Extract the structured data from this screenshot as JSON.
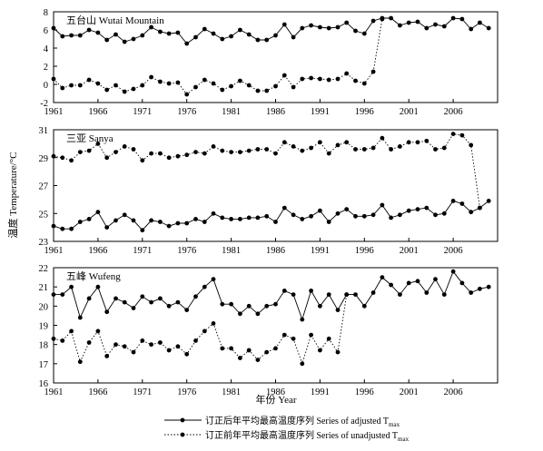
{
  "figure": {
    "ylabel": "温度 Temperature/°C",
    "xlabel": "年份 Year",
    "legend": [
      {
        "label_main": "订正后年平均最高温度序列 Series of adjusted T",
        "label_sub": "max",
        "style": "solid"
      },
      {
        "label_main": "订正前年平均最高温度序列 Series of unadjusted T",
        "label_sub": "max",
        "style": "dotted"
      }
    ]
  },
  "chart_data": [
    {
      "type": "line",
      "title": "五台山 Wutai Mountain",
      "xlim": [
        1961,
        2011
      ],
      "ylim": [
        -2,
        8
      ],
      "yticks": [
        -2,
        0,
        2,
        4,
        6,
        8
      ],
      "xticks": [
        1961,
        1966,
        1971,
        1976,
        1981,
        1986,
        1991,
        1996,
        2001,
        2006
      ],
      "x": [
        1961,
        1962,
        1963,
        1964,
        1965,
        1966,
        1967,
        1968,
        1969,
        1970,
        1971,
        1972,
        1973,
        1974,
        1975,
        1976,
        1977,
        1978,
        1979,
        1980,
        1981,
        1982,
        1983,
        1984,
        1985,
        1986,
        1987,
        1988,
        1989,
        1990,
        1991,
        1992,
        1993,
        1994,
        1995,
        1996,
        1997,
        1998,
        1999,
        2000,
        2001,
        2002,
        2003,
        2004,
        2005,
        2006,
        2007,
        2008,
        2009,
        2010,
        2011
      ],
      "series": [
        {
          "name": "订正后年平均最高温度序列 Series of adjusted Tmax",
          "style": "solid",
          "values": [
            6.2,
            5.3,
            5.4,
            5.4,
            6.0,
            5.7,
            4.9,
            5.5,
            4.7,
            5.0,
            5.4,
            6.3,
            5.8,
            5.6,
            5.7,
            4.5,
            5.2,
            6.1,
            5.6,
            5.0,
            5.3,
            6.0,
            5.5,
            4.9,
            4.9,
            5.4,
            6.6,
            5.2,
            6.2,
            6.5,
            6.3,
            6.2,
            6.3,
            6.8,
            5.9,
            5.6,
            7.0,
            7.3,
            7.3,
            6.5,
            6.8,
            6.9,
            6.2,
            6.6,
            6.4,
            7.3,
            7.2,
            6.1,
            6.8,
            6.2,
            null
          ]
        },
        {
          "name": "订正前年平均最高温度序列 Series of unadjusted Tmax",
          "style": "dotted",
          "values": [
            0.6,
            -0.4,
            -0.1,
            -0.1,
            0.5,
            0.1,
            -0.6,
            -0.1,
            -0.8,
            -0.5,
            -0.1,
            0.8,
            0.3,
            0.1,
            0.2,
            -1.1,
            -0.3,
            0.5,
            0.1,
            -0.6,
            -0.2,
            0.4,
            -0.1,
            -0.7,
            -0.7,
            -0.2,
            1.0,
            -0.3,
            0.6,
            0.7,
            0.6,
            0.5,
            0.6,
            1.2,
            0.4,
            0.1,
            1.4,
            7.2,
            null,
            null,
            null,
            null,
            null,
            null,
            null,
            null,
            null,
            null,
            null,
            null,
            null
          ]
        }
      ]
    },
    {
      "type": "line",
      "title": "三亚 Sanya",
      "xlim": [
        1961,
        2011
      ],
      "ylim": [
        23,
        31
      ],
      "yticks": [
        23,
        25,
        27,
        29,
        31
      ],
      "xticks": [
        1961,
        1966,
        1971,
        1976,
        1981,
        1986,
        1991,
        1996,
        2001,
        2006
      ],
      "x": [
        1961,
        1962,
        1963,
        1964,
        1965,
        1966,
        1967,
        1968,
        1969,
        1970,
        1971,
        1972,
        1973,
        1974,
        1975,
        1976,
        1977,
        1978,
        1979,
        1980,
        1981,
        1982,
        1983,
        1984,
        1985,
        1986,
        1987,
        1988,
        1989,
        1990,
        1991,
        1992,
        1993,
        1994,
        1995,
        1996,
        1997,
        1998,
        1999,
        2000,
        2001,
        2002,
        2003,
        2004,
        2005,
        2006,
        2007,
        2008,
        2009,
        2010,
        2011
      ],
      "series": [
        {
          "name": "订正后年平均最高温度序列 Series of adjusted Tmax",
          "style": "solid",
          "values": [
            24.1,
            23.9,
            23.9,
            24.4,
            24.6,
            25.1,
            24.0,
            24.5,
            24.9,
            24.5,
            23.8,
            24.5,
            24.4,
            24.1,
            24.3,
            24.3,
            24.6,
            24.4,
            25.0,
            24.7,
            24.6,
            24.6,
            24.7,
            24.7,
            24.8,
            24.4,
            25.4,
            24.9,
            24.6,
            24.8,
            25.2,
            24.4,
            25.0,
            25.3,
            24.8,
            24.8,
            24.9,
            25.6,
            24.7,
            24.9,
            25.2,
            25.3,
            25.4,
            24.9,
            25.0,
            25.9,
            25.7,
            25.1,
            25.4,
            25.9,
            null
          ]
        },
        {
          "name": "订正前年平均最高温度序列 Series of unadjusted Tmax",
          "style": "dotted",
          "values": [
            29.1,
            29.0,
            28.8,
            29.4,
            29.5,
            30.0,
            29.0,
            29.4,
            29.8,
            29.6,
            28.8,
            29.3,
            29.3,
            29.0,
            29.1,
            29.2,
            29.4,
            29.3,
            29.8,
            29.5,
            29.4,
            29.4,
            29.5,
            29.6,
            29.6,
            29.3,
            30.1,
            29.8,
            29.5,
            29.7,
            30.1,
            29.3,
            29.9,
            30.1,
            29.6,
            29.6,
            29.7,
            30.4,
            29.6,
            29.8,
            30.1,
            30.1,
            30.2,
            29.6,
            29.7,
            30.7,
            30.6,
            29.9,
            25.4,
            null,
            null
          ]
        }
      ]
    },
    {
      "type": "line",
      "title": "五峰 Wufeng",
      "xlim": [
        1961,
        2011
      ],
      "ylim": [
        16,
        22
      ],
      "yticks": [
        16,
        17,
        18,
        19,
        20,
        21,
        22
      ],
      "xticks": [
        1961,
        1966,
        1971,
        1976,
        1981,
        1986,
        1991,
        1996,
        2001,
        2006
      ],
      "x": [
        1961,
        1962,
        1963,
        1964,
        1965,
        1966,
        1967,
        1968,
        1969,
        1970,
        1971,
        1972,
        1973,
        1974,
        1975,
        1976,
        1977,
        1978,
        1979,
        1980,
        1981,
        1982,
        1983,
        1984,
        1985,
        1986,
        1987,
        1988,
        1989,
        1990,
        1991,
        1992,
        1993,
        1994,
        1995,
        1996,
        1997,
        1998,
        1999,
        2000,
        2001,
        2002,
        2003,
        2004,
        2005,
        2006,
        2007,
        2008,
        2009,
        2010,
        2011
      ],
      "series": [
        {
          "name": "订正后年平均最高温度序列 Series of adjusted Tmax",
          "style": "solid",
          "values": [
            20.6,
            20.6,
            21.0,
            19.4,
            20.4,
            21.0,
            19.7,
            20.4,
            20.2,
            19.9,
            20.5,
            20.2,
            20.4,
            20.0,
            20.2,
            19.8,
            20.5,
            21.0,
            21.4,
            20.1,
            20.1,
            19.6,
            20.0,
            19.6,
            20.0,
            20.1,
            20.8,
            20.6,
            19.3,
            20.8,
            20.0,
            20.6,
            19.8,
            20.6,
            20.6,
            20.0,
            20.7,
            21.5,
            21.1,
            20.6,
            21.2,
            21.3,
            20.7,
            21.4,
            20.6,
            21.8,
            21.2,
            20.7,
            20.9,
            21.0,
            null
          ]
        },
        {
          "name": "订正前年平均最高温度序列 Series of unadjusted Tmax",
          "style": "dotted",
          "values": [
            18.3,
            18.2,
            18.7,
            17.1,
            18.1,
            18.7,
            17.4,
            18.0,
            17.9,
            17.6,
            18.2,
            18.0,
            18.1,
            17.7,
            17.9,
            17.5,
            18.2,
            18.7,
            19.1,
            17.8,
            17.8,
            17.3,
            17.7,
            17.2,
            17.6,
            17.8,
            18.5,
            18.3,
            17.0,
            18.5,
            17.7,
            18.3,
            17.6,
            20.6,
            null,
            null,
            null,
            null,
            null,
            null,
            null,
            null,
            null,
            null,
            null,
            null,
            null,
            null,
            null,
            null,
            null
          ]
        }
      ]
    }
  ]
}
